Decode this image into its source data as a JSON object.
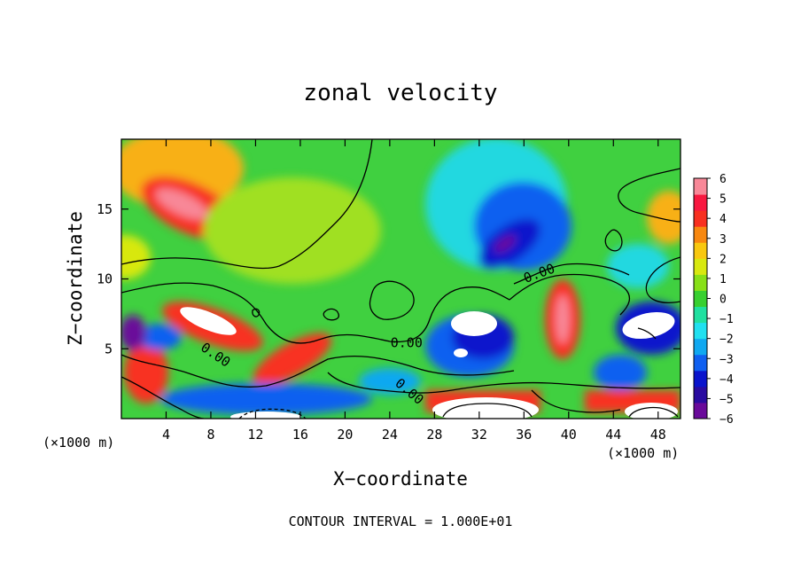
{
  "chart_data": {
    "type": "heatmap",
    "title": "zonal velocity",
    "xlabel": "X−coordinate",
    "ylabel": "Z−coordinate",
    "x_unit": "(×1000 m)",
    "y_unit": "(×1000 m)",
    "xlim": [
      0,
      50
    ],
    "ylim": [
      0,
      20
    ],
    "x_ticks": [
      "4",
      "8",
      "12",
      "16",
      "20",
      "24",
      "28",
      "32",
      "36",
      "40",
      "44",
      "48"
    ],
    "x_tick_values": [
      4,
      8,
      12,
      16,
      20,
      24,
      28,
      32,
      36,
      40,
      44,
      48
    ],
    "y_ticks": [
      "5",
      "10",
      "15"
    ],
    "y_tick_values": [
      5,
      10,
      15
    ],
    "colorbar": {
      "ticks": [
        "6",
        "5",
        "4",
        "3",
        "2",
        "1",
        "0",
        "−1",
        "−2",
        "−3",
        "−4",
        "−5",
        "−6"
      ],
      "tick_values": [
        6,
        5,
        4,
        3,
        2,
        1,
        0,
        -1,
        -2,
        -3,
        -4,
        -5,
        -6
      ],
      "range": [
        -6,
        6
      ],
      "colors": [
        "#6a0a9a",
        "#2a0ca0",
        "#0a14cc",
        "#1060f0",
        "#10a8f0",
        "#20e0f0",
        "#20e0a0",
        "#38d030",
        "#88e018",
        "#d8e810",
        "#f8c810",
        "#f88810",
        "#f83020",
        "#f81840",
        "#f88898"
      ]
    },
    "contour_labels": [
      {
        "text": "0.00",
        "x": 8.2,
        "y": 4.3,
        "rotate": 34
      },
      {
        "text": "0.00",
        "x": 25.5,
        "y": 5.1,
        "rotate": 0
      },
      {
        "text": "0.00",
        "x": 25.5,
        "y": 1.7,
        "rotate": 40
      },
      {
        "text": "0.00",
        "x": 37.5,
        "y": 10.1,
        "rotate": -20
      }
    ],
    "footer": "CONTOUR INTERVAL = 1.000E+01"
  }
}
